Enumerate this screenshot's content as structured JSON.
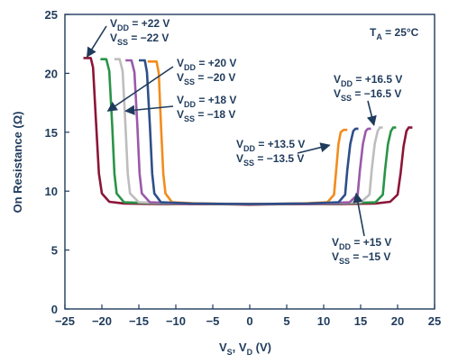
{
  "chart_data": {
    "type": "line",
    "xlim": [
      -25,
      25
    ],
    "ylim": [
      0,
      25
    ],
    "x_ticks": [
      "−25",
      "−20",
      "−15",
      "−10",
      "−5",
      "0",
      "5",
      "10",
      "15",
      "20",
      "25"
    ],
    "y_ticks": [
      "0",
      "5",
      "10",
      "15",
      "20",
      "25"
    ],
    "xlabel": {
      "main1": "V",
      "sub1": "S",
      "mid": ", V",
      "sub2": "D",
      "end": " (V)"
    },
    "ylabel": "On Resistance (Ω)",
    "grid": false,
    "temperature_label": {
      "main": "T",
      "sub": "A",
      "rest": " = 25°C"
    },
    "series": [
      {
        "color": "#8b1538",
        "supply": "±22 V",
        "x": [
          -22.5,
          -21.5,
          -21.2,
          -20.8,
          -20.4,
          -20.0,
          -19.0,
          -17.0,
          -12.0,
          -5.0,
          0.0,
          5.0,
          12.0,
          17.0,
          19.0,
          20.0,
          20.4,
          20.8,
          21.2,
          21.5,
          22.0
        ],
        "y": [
          21.3,
          21.3,
          20.5,
          16.0,
          11.5,
          9.8,
          9.1,
          8.95,
          8.9,
          8.9,
          8.85,
          8.9,
          8.9,
          8.95,
          9.1,
          9.7,
          11.5,
          13.8,
          15.1,
          15.4,
          15.4
        ]
      },
      {
        "color": "#2a9447",
        "supply": "±20 V",
        "x": [
          -20.2,
          -19.4,
          -19.0,
          -18.6,
          -18.3,
          -18.0,
          -17.0,
          -12.0,
          0.0,
          12.0,
          17.0,
          18.0,
          18.3,
          18.7,
          19.1,
          19.4,
          19.8
        ],
        "y": [
          21.2,
          21.2,
          20.2,
          15.5,
          11.5,
          9.8,
          9.05,
          8.95,
          8.9,
          8.95,
          9.05,
          9.7,
          11.8,
          14.0,
          15.1,
          15.4,
          15.4
        ]
      },
      {
        "color": "#bdbdbd",
        "supply": "±18 V",
        "x": [
          -18.3,
          -17.6,
          -17.2,
          -16.8,
          -16.5,
          -16.2,
          -15.0,
          -10.0,
          0.0,
          10.0,
          15.0,
          16.2,
          16.5,
          16.9,
          17.3,
          17.6,
          18.0
        ],
        "y": [
          21.2,
          21.2,
          20.2,
          15.5,
          11.5,
          9.8,
          9.05,
          8.95,
          8.9,
          8.95,
          9.05,
          9.7,
          11.8,
          14.0,
          15.1,
          15.4,
          15.4
        ]
      },
      {
        "color": "#9b59a9",
        "supply": "±16.5 V",
        "x": [
          -16.8,
          -16.0,
          -15.6,
          -15.2,
          -14.9,
          -14.6,
          -13.5,
          -9.0,
          0.0,
          9.0,
          13.5,
          14.6,
          14.9,
          15.3,
          15.7,
          16.0,
          16.4
        ],
        "y": [
          21.1,
          21.1,
          20.1,
          15.5,
          11.5,
          9.8,
          9.05,
          8.95,
          8.9,
          8.95,
          9.05,
          9.7,
          11.8,
          14.0,
          15.1,
          15.3,
          15.3
        ]
      },
      {
        "color": "#f28c1c",
        "supply": "±13.5 V",
        "x": [
          -13.8,
          -12.6,
          -12.3,
          -12.0,
          -11.7,
          -11.4,
          -10.5,
          -7.0,
          0.0,
          7.0,
          10.5,
          11.4,
          11.7,
          12.0,
          12.3,
          12.7,
          13.2
        ],
        "y": [
          21.0,
          21.0,
          20.0,
          15.5,
          11.5,
          9.8,
          9.05,
          8.95,
          8.9,
          8.95,
          9.05,
          9.7,
          11.8,
          14.0,
          15.0,
          15.2,
          15.2
        ]
      },
      {
        "color": "#2e4f8a",
        "supply": "±15 V",
        "x": [
          -15.0,
          -14.2,
          -13.9,
          -13.5,
          -13.2,
          -12.9,
          -12.0,
          -8.0,
          0.0,
          8.0,
          12.0,
          12.9,
          13.2,
          13.6,
          14.0,
          14.3,
          14.7
        ],
        "y": [
          21.1,
          21.1,
          20.1,
          15.5,
          11.5,
          9.8,
          9.05,
          8.95,
          8.9,
          8.95,
          9.05,
          9.7,
          11.8,
          14.0,
          15.1,
          15.3,
          15.3
        ]
      }
    ],
    "annotations": [
      {
        "id": "a22",
        "vdd": "= +22 V",
        "vss": "= −22 V",
        "arrow_to": [
          -22.0,
          21.4
        ]
      },
      {
        "id": "a20",
        "vdd": "= +20 V",
        "vss": "= −20 V",
        "arrow_to": [
          -19.2,
          16.8
        ]
      },
      {
        "id": "a18",
        "vdd": "= +18 V",
        "vss": "= −18 V",
        "arrow_to": [
          -16.8,
          16.8
        ]
      },
      {
        "id": "a165",
        "vdd": "= +16.5 V",
        "vss": "= −16.5 V",
        "arrow_to": [
          16.8,
          15.6
        ]
      },
      {
        "id": "a135",
        "vdd": "= +13.5 V",
        "vss": "= −13.5 V",
        "arrow_to": [
          10.8,
          13.9
        ]
      },
      {
        "id": "a15",
        "vdd": "= +15 V",
        "vss": "= −15 V",
        "arrow_to": [
          14.4,
          9.8
        ]
      }
    ]
  }
}
